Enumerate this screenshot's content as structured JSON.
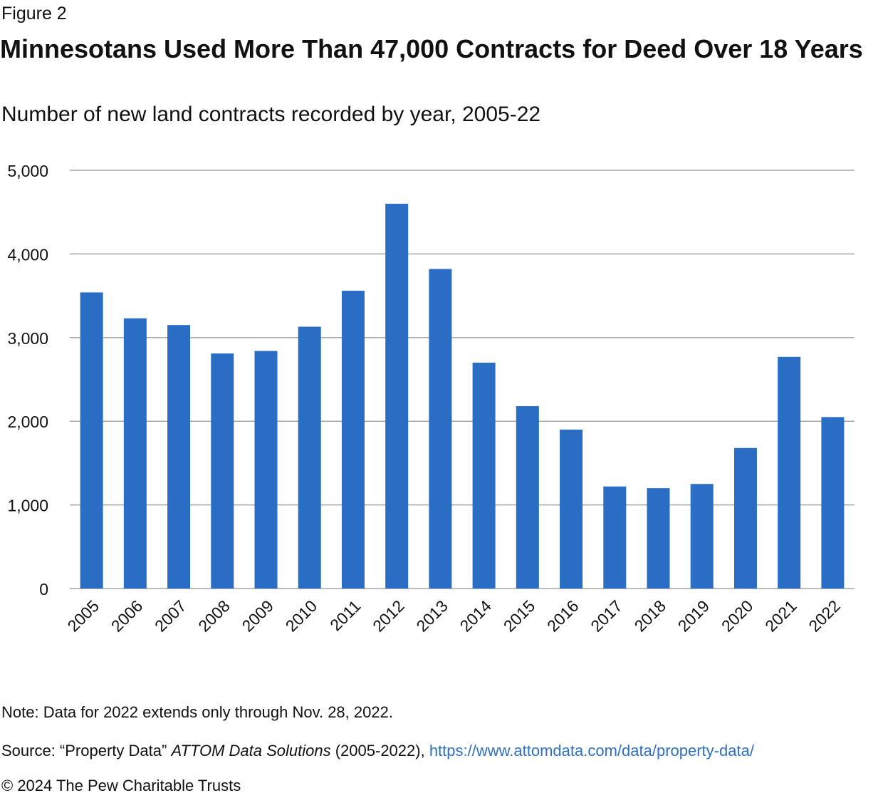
{
  "figure_label": "Figure 2",
  "title": "Minnesotans Used More Than 47,000 Contracts for Deed Over 18 Years",
  "subtitle": "Number of new land contracts recorded by year, 2005-22",
  "note": "Note: Data for 2022 extends only through Nov. 28, 2022.",
  "source": {
    "prefix": "Source: “Property Data” ",
    "publication": "ATTOM Data Solutions",
    "years": " (2005-2022), ",
    "url": "https://www.attomdata.com/data/property-data/"
  },
  "copyright": "© 2024 The Pew Charitable Trusts",
  "colors": {
    "bar": "#2a6dc4",
    "grid": "#a6a6a6",
    "link": "#2e6fc6"
  },
  "chart_data": {
    "type": "bar",
    "categories": [
      "2005",
      "2006",
      "2007",
      "2008",
      "2009",
      "2010",
      "2011",
      "2012",
      "2013",
      "2014",
      "2015",
      "2016",
      "2017",
      "2018",
      "2019",
      "2020",
      "2021",
      "2022"
    ],
    "values": [
      3540,
      3230,
      3150,
      2810,
      2840,
      3130,
      3560,
      4600,
      3820,
      2700,
      2180,
      1900,
      1220,
      1200,
      1250,
      1680,
      2770,
      2050
    ],
    "yticks": [
      "0",
      "1,000",
      "2,000",
      "3,000",
      "4,000",
      "5,000"
    ],
    "ylim": [
      0,
      5000
    ],
    "grid": true,
    "legend": "none"
  }
}
